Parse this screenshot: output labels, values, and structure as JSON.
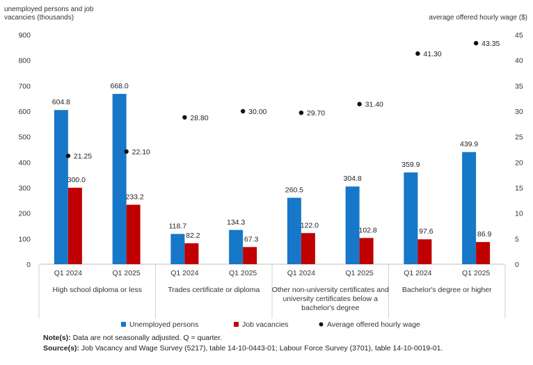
{
  "chart_data": {
    "type": "bar",
    "left_axis_title": "unemployed persons and job vacancies (thousands)",
    "left_axis_title_lines": [
      "unemployed persons and job",
      "vacancies (thousands)"
    ],
    "right_axis_title": "average offered hourly wage ($)",
    "left_ylim": [
      0,
      900
    ],
    "left_ticks": [
      "0",
      "100",
      "200",
      "300",
      "400",
      "500",
      "600",
      "700",
      "800",
      "900"
    ],
    "right_ylim": [
      0,
      45
    ],
    "right_ticks": [
      "0",
      "5",
      "10",
      "15",
      "20",
      "25",
      "30",
      "35",
      "40",
      "45"
    ],
    "groups": [
      {
        "name": "High school diploma or less",
        "name_lines": [
          "High school diploma or less"
        ]
      },
      {
        "name": "Trades certificate or diploma",
        "name_lines": [
          "Trades certificate or diploma"
        ]
      },
      {
        "name": "Other non-university certificates and university certificates below a bachelor's degree",
        "name_lines": [
          "Other non-university certificates and",
          "university certificates below a",
          "bachelor's degree"
        ]
      },
      {
        "name": "Bachelor's degree or higher",
        "name_lines": [
          "Bachelor's degree or higher"
        ]
      }
    ],
    "categories": [
      "Q1 2024",
      "Q1 2025",
      "Q1 2024",
      "Q1 2025",
      "Q1 2024",
      "Q1 2025",
      "Q1 2024",
      "Q1 2025"
    ],
    "series": [
      {
        "name": "Unemployed persons",
        "axis": "left",
        "mark": "bar",
        "color": "#1777c8",
        "values": [
          604.8,
          668.0,
          118.7,
          134.3,
          260.5,
          304.8,
          359.9,
          439.9
        ],
        "labels": [
          "604.8",
          "668.0",
          "118.7",
          "134.3",
          "260.5",
          "304.8",
          "359.9",
          "439.9"
        ]
      },
      {
        "name": "Job vacancies",
        "axis": "left",
        "mark": "bar",
        "color": "#c00000",
        "values": [
          300.0,
          233.2,
          82.2,
          67.3,
          122.0,
          102.8,
          97.6,
          86.9
        ],
        "labels": [
          "300.0",
          "233.2",
          "82.2",
          "67.3",
          "122.0",
          "102.8",
          "97.6",
          "86.9"
        ]
      },
      {
        "name": "Average offered hourly wage",
        "axis": "right",
        "mark": "dot",
        "color": "#111111",
        "values": [
          21.25,
          22.1,
          28.8,
          30.0,
          29.7,
          31.4,
          41.3,
          43.35
        ],
        "labels": [
          "21.25",
          "22.10",
          "28.80",
          "30.00",
          "29.70",
          "31.40",
          "41.30",
          "43.35"
        ]
      }
    ],
    "legend_position": "bottom"
  },
  "notes": {
    "note_label": "Note(s):",
    "note_text": "Data are not seasonally adjusted. Q = quarter.",
    "source_label": "Source(s):",
    "source_text": "Job Vacancy and Wage Survey (5217), table 14-10-0443-01; Labour Force Survey (3701), table 14-10-0019-01."
  }
}
